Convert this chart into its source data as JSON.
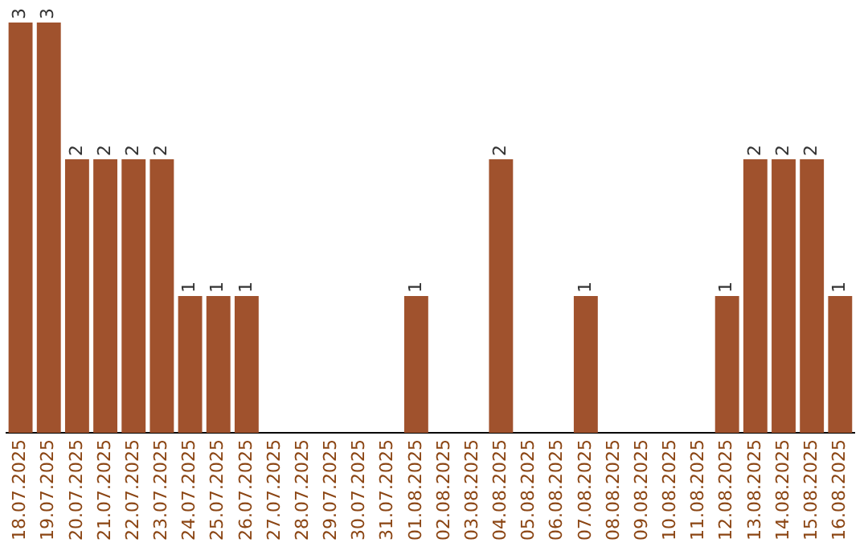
{
  "chart_data": {
    "type": "bar",
    "categories": [
      "18.07.2025",
      "19.07.2025",
      "20.07.2025",
      "21.07.2025",
      "22.07.2025",
      "23.07.2025",
      "24.07.2025",
      "25.07.2025",
      "26.07.2025",
      "27.07.2025",
      "28.07.2025",
      "29.07.2025",
      "30.07.2025",
      "31.07.2025",
      "01.08.2025",
      "02.08.2025",
      "03.08.2025",
      "04.08.2025",
      "05.08.2025",
      "06.08.2025",
      "07.08.2025",
      "08.08.2025",
      "09.08.2025",
      "10.08.2025",
      "11.08.2025",
      "12.08.2025",
      "13.08.2025",
      "14.08.2025",
      "15.08.2025",
      "16.08.2025"
    ],
    "values": [
      3,
      3,
      2,
      2,
      2,
      2,
      1,
      1,
      1,
      0,
      0,
      0,
      0,
      0,
      1,
      0,
      0,
      2,
      0,
      0,
      1,
      0,
      0,
      0,
      0,
      1,
      2,
      2,
      2,
      1
    ],
    "value_labels": [
      "3",
      "3",
      "2",
      "2",
      "2",
      "2",
      "1",
      "1",
      "1",
      null,
      null,
      null,
      null,
      null,
      "1",
      null,
      null,
      "2",
      null,
      null,
      "1",
      null,
      null,
      null,
      null,
      "1",
      "2",
      "2",
      "2",
      "1"
    ],
    "color": "#a0522d",
    "grid": false,
    "legend": false
  }
}
